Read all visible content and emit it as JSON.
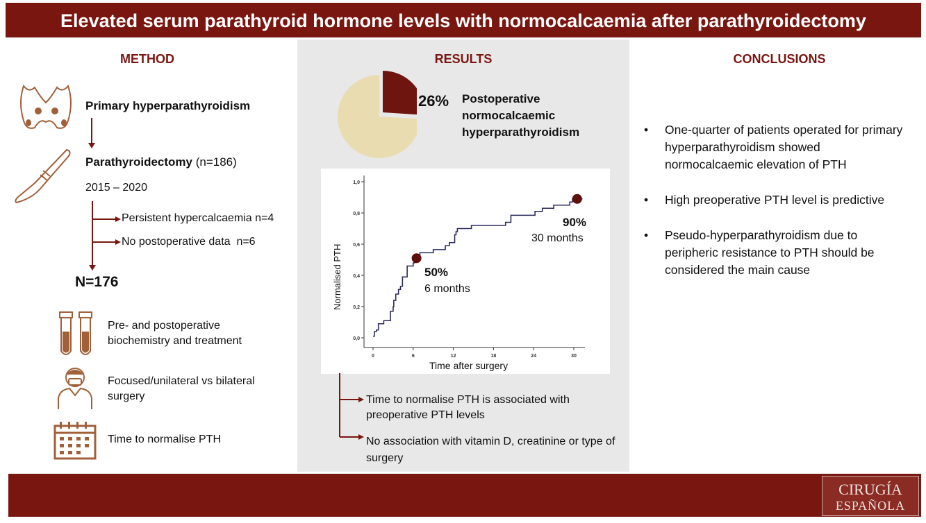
{
  "title": "Elevated serum parathyroid hormone levels with normocalcaemia after parathyroidectomy",
  "colors": {
    "brand": "#7a1610",
    "icon": "#a0603a",
    "pie_light": "#e9dcb0",
    "panel": "#e8e8e8"
  },
  "method": {
    "heading": "METHOD",
    "step1": "Primary hyperparathyroidism",
    "step2": "Parathyroidectomy",
    "step2_n": "(n=186)",
    "period": "2015 – 2020",
    "excl1": "Persistent hypercalcaemia n=4",
    "excl2": "No postoperative data  n=6",
    "final": "N=176",
    "items": [
      {
        "icon": "test-tubes-icon",
        "text": "Pre- and postoperative biochemistry and treatment"
      },
      {
        "icon": "surgeon-icon",
        "text": "Focused/unilateral vs bilateral surgery"
      },
      {
        "icon": "calendar-icon",
        "text": "Time to normalise PTH"
      }
    ]
  },
  "results": {
    "heading": "RESULTS",
    "pie_percent": "26%",
    "pie_value": 26,
    "pie_label": "Postoperative normocalcaemic hyperparathyroidism",
    "finding1": "Time to normalise PTH is associated with preoperative PTH levels",
    "finding2": "No association with vitamin D, creatinine or type of surgery"
  },
  "chart_data": {
    "type": "line",
    "step": true,
    "xlabel": "Time after surgery",
    "ylabel": "Normalised PTH",
    "xlim": [
      0,
      31.5
    ],
    "ylim": [
      0,
      1
    ],
    "xticks": [
      "0",
      "6",
      "12",
      "18",
      "24",
      "30"
    ],
    "yticks": [
      "0,0",
      "0,2",
      "0,4",
      "0,6",
      "0,8",
      "1,0"
    ],
    "x": [
      0,
      0.2,
      0.5,
      0.8,
      1.6,
      2.6,
      3.0,
      3.1,
      3.4,
      3.8,
      4.1,
      4.4,
      5.1,
      6.0,
      6.2,
      7.0,
      9.0,
      10.8,
      11.4,
      12.2,
      12.4,
      12.6,
      14.7,
      19.8,
      20.6,
      24.2,
      25.3,
      27.0,
      29.4,
      29.8,
      31.3
    ],
    "y": [
      0.01,
      0.04,
      0.05,
      0.09,
      0.11,
      0.17,
      0.2,
      0.24,
      0.28,
      0.31,
      0.33,
      0.39,
      0.46,
      0.48,
      0.5,
      0.545,
      0.565,
      0.59,
      0.61,
      0.66,
      0.68,
      0.7,
      0.72,
      0.74,
      0.785,
      0.81,
      0.83,
      0.85,
      0.87,
      0.89,
      0.89
    ],
    "annotations": [
      {
        "x": 6.5,
        "y": 0.51,
        "value": "50%",
        "label": "6 months"
      },
      {
        "x": 30.5,
        "y": 0.89,
        "value": "90%",
        "label": "30 months"
      }
    ]
  },
  "conclusions": {
    "heading": "CONCLUSIONS",
    "items": [
      "One-quarter of patients operated for primary hyperparathyroidism showed normocalcaemic elevation of PTH",
      "High preoperative PTH level is predictive",
      "Pseudo-hyperparathyroidism due to peripheric resistance to PTH should be considered the main cause"
    ]
  },
  "logo": {
    "line1": "CIRUGÍA",
    "line2": "ESPAÑOLA"
  }
}
